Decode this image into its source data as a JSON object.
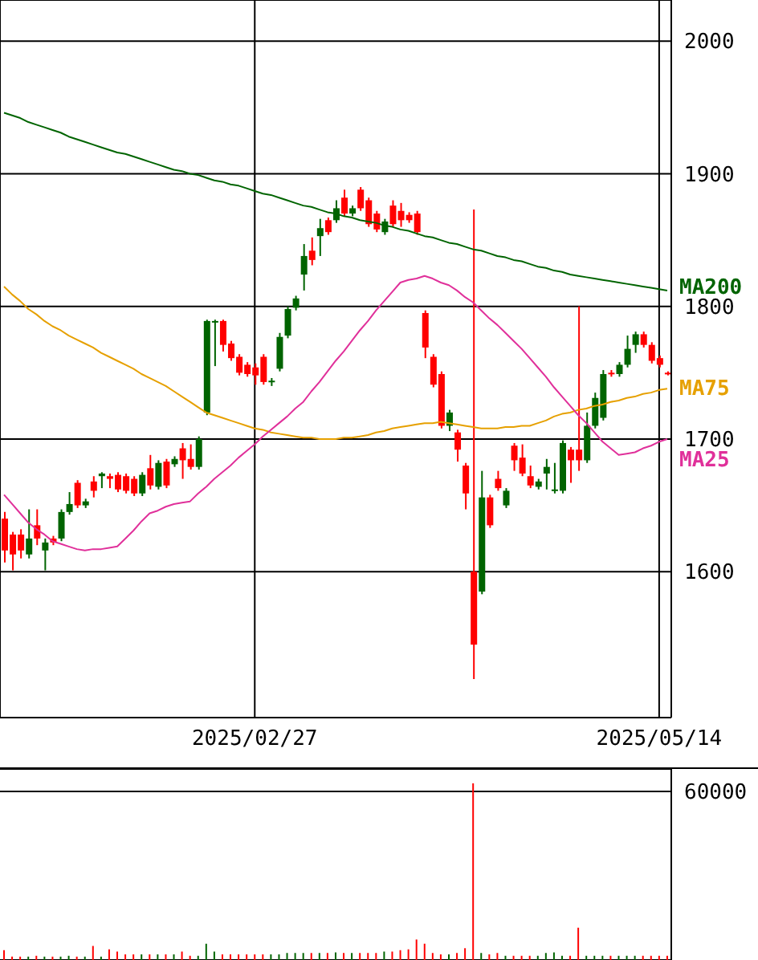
{
  "chart_data": [
    {
      "type": "candlestick",
      "categories": [
        null,
        null,
        null,
        null,
        null,
        null,
        null,
        null,
        null,
        null,
        null,
        null,
        null,
        null,
        null,
        null,
        null,
        null,
        null,
        null,
        null,
        null,
        null,
        null,
        null,
        null,
        null,
        null,
        null,
        null,
        null,
        "2025/02/27",
        null,
        null,
        null,
        null,
        null,
        null,
        null,
        null,
        null,
        null,
        null,
        null,
        null,
        null,
        null,
        null,
        null,
        null,
        null,
        null,
        null,
        null,
        null,
        null,
        null,
        null,
        null,
        null,
        null,
        null,
        null,
        null,
        null,
        null,
        null,
        null,
        null,
        null,
        null,
        null,
        null,
        null,
        null,
        null,
        null,
        null,
        null,
        null,
        null,
        "2025/05/14",
        null
      ],
      "ohlc": [
        [
          1640,
          1645,
          1607,
          1616
        ],
        [
          1628,
          1630,
          1601,
          1613
        ],
        [
          1628,
          1632,
          1610,
          1616
        ],
        [
          1613,
          1647,
          1610,
          1625
        ],
        [
          1635,
          1647,
          1620,
          1625
        ],
        [
          1616,
          1625,
          1601,
          1622
        ],
        [
          1625,
          1627,
          1620,
          1622
        ],
        [
          1625,
          1647,
          1623,
          1645
        ],
        [
          1645,
          1660,
          1643,
          1651
        ],
        [
          1667,
          1669,
          1648,
          1650
        ],
        [
          1650,
          1655,
          1648,
          1653
        ],
        [
          1668,
          1672,
          1656,
          1661
        ],
        [
          1672,
          1675,
          1663,
          1674
        ],
        [
          1672,
          1674,
          1663,
          1670
        ],
        [
          1673,
          1675,
          1660,
          1662
        ],
        [
          1672,
          1674,
          1659,
          1661
        ],
        [
          1670,
          1672,
          1657,
          1659
        ],
        [
          1659,
          1675,
          1657,
          1673
        ],
        [
          1678,
          1688,
          1662,
          1665
        ],
        [
          1664,
          1684,
          1662,
          1682
        ],
        [
          1683,
          1685,
          1663,
          1665
        ],
        [
          1681,
          1687,
          1679,
          1685
        ],
        [
          1693,
          1697,
          1670,
          1684
        ],
        [
          1685,
          1696,
          1677,
          1679
        ],
        [
          1679,
          1702,
          1677,
          1700
        ],
        [
          1720,
          1790,
          1718,
          1789
        ],
        [
          1789,
          1790,
          1755,
          1789
        ],
        [
          1789,
          1790,
          1766,
          1771
        ],
        [
          1772,
          1774,
          1759,
          1761
        ],
        [
          1762,
          1764,
          1748,
          1750
        ],
        [
          1756,
          1758,
          1747,
          1749
        ],
        [
          1754,
          1757,
          1741,
          1748
        ],
        [
          1762,
          1764,
          1741,
          1743
        ],
        [
          1743,
          1746,
          1740,
          1744
        ],
        [
          1753,
          1780,
          1751,
          1777
        ],
        [
          1778,
          1800,
          1776,
          1798
        ],
        [
          1799,
          1808,
          1797,
          1806
        ],
        [
          1824,
          1847,
          1812,
          1838
        ],
        [
          1842,
          1852,
          1831,
          1835
        ],
        [
          1853,
          1866,
          1838,
          1859
        ],
        [
          1865,
          1867,
          1854,
          1856
        ],
        [
          1865,
          1880,
          1863,
          1874
        ],
        [
          1882,
          1888,
          1868,
          1870
        ],
        [
          1870,
          1876,
          1868,
          1874
        ],
        [
          1888,
          1890,
          1872,
          1874
        ],
        [
          1880,
          1882,
          1860,
          1862
        ],
        [
          1870,
          1872,
          1856,
          1858
        ],
        [
          1856,
          1866,
          1854,
          1864
        ],
        [
          1876,
          1880,
          1860,
          1862
        ],
        [
          1872,
          1878,
          1860,
          1865
        ],
        [
          1869,
          1871,
          1863,
          1865
        ],
        [
          1870,
          1872,
          1854,
          1856
        ],
        [
          1795,
          1797,
          1761,
          1769
        ],
        [
          1762,
          1764,
          1739,
          1741
        ],
        [
          1749,
          1751,
          1708,
          1710
        ],
        [
          1710,
          1722,
          1706,
          1720
        ],
        [
          1705,
          1707,
          1683,
          1692
        ],
        [
          1680,
          1682,
          1647,
          1659
        ],
        [
          1600,
          1873,
          1519,
          1545
        ],
        [
          1585,
          1676,
          1583,
          1656
        ],
        [
          1656,
          1658,
          1633,
          1635
        ],
        [
          1670,
          1676,
          1661,
          1663
        ],
        [
          1650,
          1663,
          1648,
          1661
        ],
        [
          1695,
          1697,
          1676,
          1684
        ],
        [
          1686,
          1696,
          1672,
          1674
        ],
        [
          1672,
          1680,
          1663,
          1665
        ],
        [
          1664,
          1670,
          1662,
          1668
        ],
        [
          1674,
          1685,
          1662,
          1679
        ],
        [
          1661,
          1682,
          1659,
          1662
        ],
        [
          1661,
          1699,
          1659,
          1697
        ],
        [
          1692,
          1694,
          1667,
          1684
        ],
        [
          1692,
          1800,
          1676,
          1684
        ],
        [
          1684,
          1720,
          1682,
          1710
        ],
        [
          1710,
          1735,
          1708,
          1731
        ],
        [
          1716,
          1752,
          1714,
          1749
        ],
        [
          1750,
          1752,
          1747,
          1749
        ],
        [
          1749,
          1758,
          1747,
          1756
        ],
        [
          1756,
          1778,
          1754,
          1768
        ],
        [
          1771,
          1781,
          1765,
          1779
        ],
        [
          1779,
          1781,
          1769,
          1771
        ],
        [
          1771,
          1773,
          1757,
          1759
        ],
        [
          1761,
          1763,
          1754,
          1756
        ],
        [
          1750,
          1751,
          1748,
          1749
        ]
      ],
      "colors": [
        "#ff0000",
        "#ff0000",
        "#ff0000",
        "#006400",
        "#ff0000",
        "#006400",
        "#ff0000",
        "#006400",
        "#006400",
        "#ff0000",
        "#006400",
        "#ff0000",
        "#006400",
        "#ff0000",
        "#ff0000",
        "#ff0000",
        "#ff0000",
        "#006400",
        "#ff0000",
        "#006400",
        "#ff0000",
        "#006400",
        "#ff0000",
        "#ff0000",
        "#006400",
        "#006400",
        "#006400",
        "#ff0000",
        "#ff0000",
        "#ff0000",
        "#ff0000",
        "#ff0000",
        "#ff0000",
        "#006400",
        "#006400",
        "#006400",
        "#006400",
        "#006400",
        "#ff0000",
        "#006400",
        "#ff0000",
        "#006400",
        "#ff0000",
        "#006400",
        "#ff0000",
        "#ff0000",
        "#ff0000",
        "#006400",
        "#ff0000",
        "#ff0000",
        "#ff0000",
        "#ff0000",
        "#ff0000",
        "#ff0000",
        "#ff0000",
        "#006400",
        "#ff0000",
        "#ff0000",
        "#ff0000",
        "#006400",
        "#ff0000",
        "#ff0000",
        "#006400",
        "#ff0000",
        "#ff0000",
        "#ff0000",
        "#006400",
        "#006400",
        "#006400",
        "#006400",
        "#ff0000",
        "#ff0000",
        "#006400",
        "#006400",
        "#006400",
        "#ff0000",
        "#006400",
        "#006400",
        "#006400",
        "#ff0000",
        "#ff0000",
        "#ff0000",
        "#ff0000"
      ],
      "series": [
        {
          "name": "MA200",
          "type": "line",
          "color": "#006400",
          "values": [
            1946,
            1944,
            1942,
            1939,
            1937,
            1935,
            1933,
            1931,
            1928,
            1926,
            1924,
            1922,
            1920,
            1918,
            1916,
            1915,
            1913,
            1911,
            1909,
            1907,
            1905,
            1903,
            1902,
            1900,
            1899,
            1897,
            1895,
            1894,
            1892,
            1891,
            1889,
            1887,
            1885,
            1884,
            1882,
            1880,
            1878,
            1876,
            1875,
            1873,
            1871,
            1870,
            1868,
            1867,
            1865,
            1864,
            1863,
            1861,
            1860,
            1858,
            1857,
            1855,
            1853,
            1852,
            1850,
            1848,
            1847,
            1845,
            1843,
            1842,
            1840,
            1838,
            1837,
            1835,
            1834,
            1832,
            1830,
            1829,
            1827,
            1826,
            1824,
            1823,
            1822,
            1821,
            1820,
            1819,
            1818,
            1817,
            1816,
            1815,
            1814,
            1813,
            1812
          ]
        },
        {
          "name": "MA75",
          "type": "line",
          "color": "#e6a000",
          "values": [
            1815,
            1809,
            1804,
            1798,
            1794,
            1789,
            1785,
            1782,
            1778,
            1775,
            1772,
            1769,
            1765,
            1762,
            1759,
            1756,
            1753,
            1749,
            1746,
            1743,
            1740,
            1736,
            1732,
            1728,
            1724,
            1720,
            1718,
            1716,
            1714,
            1712,
            1710,
            1708,
            1707,
            1705,
            1704,
            1703,
            1702,
            1701,
            1701,
            1700,
            1700,
            1700,
            1701,
            1701,
            1702,
            1703,
            1705,
            1706,
            1708,
            1709,
            1710,
            1711,
            1712,
            1712,
            1713,
            1712,
            1711,
            1710,
            1709,
            1708,
            1708,
            1708,
            1709,
            1709,
            1710,
            1710,
            1712,
            1714,
            1717,
            1719,
            1720,
            1722,
            1723,
            1725,
            1726,
            1728,
            1729,
            1731,
            1732,
            1734,
            1735,
            1737,
            1738
          ]
        },
        {
          "name": "MA25",
          "type": "line",
          "color": "#e0309a",
          "values": [
            1658,
            1651,
            1644,
            1637,
            1632,
            1628,
            1623,
            1621,
            1619,
            1617,
            1616,
            1617,
            1617,
            1618,
            1619,
            1625,
            1631,
            1638,
            1644,
            1646,
            1649,
            1651,
            1652,
            1653,
            1659,
            1664,
            1670,
            1675,
            1680,
            1686,
            1691,
            1696,
            1702,
            1707,
            1712,
            1717,
            1723,
            1728,
            1736,
            1743,
            1751,
            1759,
            1766,
            1774,
            1782,
            1789,
            1797,
            1804,
            1811,
            1818,
            1820,
            1821,
            1823,
            1821,
            1818,
            1816,
            1812,
            1807,
            1803,
            1797,
            1791,
            1786,
            1780,
            1774,
            1768,
            1761,
            1754,
            1747,
            1739,
            1732,
            1725,
            1718,
            1712,
            1705,
            1698,
            1693,
            1688,
            1689,
            1690,
            1693,
            1695,
            1698,
            1700
          ]
        }
      ],
      "ylim": [
        1490,
        2031
      ],
      "yticks": [
        1600,
        1700,
        1800,
        1900,
        2000
      ],
      "grid": true
    },
    {
      "type": "bar",
      "categories": [
        null,
        null,
        null,
        null,
        null,
        null,
        null,
        null,
        null,
        null,
        null,
        null,
        null,
        null,
        null,
        null,
        null,
        null,
        null,
        null,
        null,
        null,
        null,
        null,
        null,
        null,
        null,
        null,
        null,
        null,
        null,
        null,
        null,
        null,
        null,
        null,
        null,
        null,
        null,
        null,
        null,
        null,
        null,
        null,
        null,
        null,
        null,
        null,
        null,
        null,
        null,
        null,
        null,
        null,
        null,
        null,
        null,
        null,
        null,
        null,
        null,
        null,
        null,
        null,
        null,
        null,
        null,
        null,
        null,
        null,
        null,
        null,
        null,
        null,
        null,
        null,
        null,
        null,
        null,
        null,
        null,
        null,
        null
      ],
      "values": [
        3500,
        1200,
        1200,
        1200,
        1500,
        1200,
        1200,
        1200,
        1500,
        1200,
        1200,
        5000,
        1200,
        3800,
        3000,
        2000,
        2000,
        2000,
        2000,
        2000,
        2000,
        2000,
        3000,
        1500,
        1500,
        5800,
        3000,
        2000,
        2000,
        2000,
        2000,
        2000,
        2000,
        2000,
        2000,
        2500,
        2500,
        2500,
        2500,
        2500,
        2500,
        2700,
        2500,
        2500,
        2500,
        2500,
        2500,
        3000,
        3000,
        3500,
        3800,
        7300,
        5800,
        2500,
        2000,
        2000,
        2500,
        4200,
        62900,
        2500,
        2000,
        2500,
        1500,
        1500,
        1500,
        1500,
        1500,
        2500,
        2700,
        1500,
        1500,
        11500,
        1500,
        1500,
        1500,
        1500,
        1500,
        1500,
        1500,
        1500,
        1500,
        1500,
        1500
      ],
      "colors": [
        "#ff0000",
        "#ff0000",
        "#ff0000",
        "#006400",
        "#ff0000",
        "#006400",
        "#ff0000",
        "#006400",
        "#006400",
        "#ff0000",
        "#006400",
        "#ff0000",
        "#006400",
        "#ff0000",
        "#ff0000",
        "#ff0000",
        "#ff0000",
        "#006400",
        "#ff0000",
        "#006400",
        "#ff0000",
        "#006400",
        "#ff0000",
        "#ff0000",
        "#006400",
        "#006400",
        "#006400",
        "#ff0000",
        "#ff0000",
        "#ff0000",
        "#ff0000",
        "#ff0000",
        "#ff0000",
        "#006400",
        "#006400",
        "#006400",
        "#006400",
        "#006400",
        "#ff0000",
        "#006400",
        "#ff0000",
        "#006400",
        "#ff0000",
        "#006400",
        "#ff0000",
        "#ff0000",
        "#ff0000",
        "#006400",
        "#ff0000",
        "#ff0000",
        "#ff0000",
        "#ff0000",
        "#ff0000",
        "#ff0000",
        "#ff0000",
        "#006400",
        "#ff0000",
        "#ff0000",
        "#ff0000",
        "#006400",
        "#ff0000",
        "#ff0000",
        "#006400",
        "#ff0000",
        "#ff0000",
        "#ff0000",
        "#006400",
        "#006400",
        "#006400",
        "#006400",
        "#ff0000",
        "#ff0000",
        "#006400",
        "#006400",
        "#006400",
        "#ff0000",
        "#006400",
        "#006400",
        "#006400",
        "#ff0000",
        "#ff0000",
        "#ff0000",
        "#ff0000"
      ],
      "ylim": [
        0,
        68000
      ],
      "yticks": [
        {
          "value": 0,
          "label": null
        },
        60000
      ],
      "grid": "y",
      "tick_labels": "y"
    }
  ]
}
